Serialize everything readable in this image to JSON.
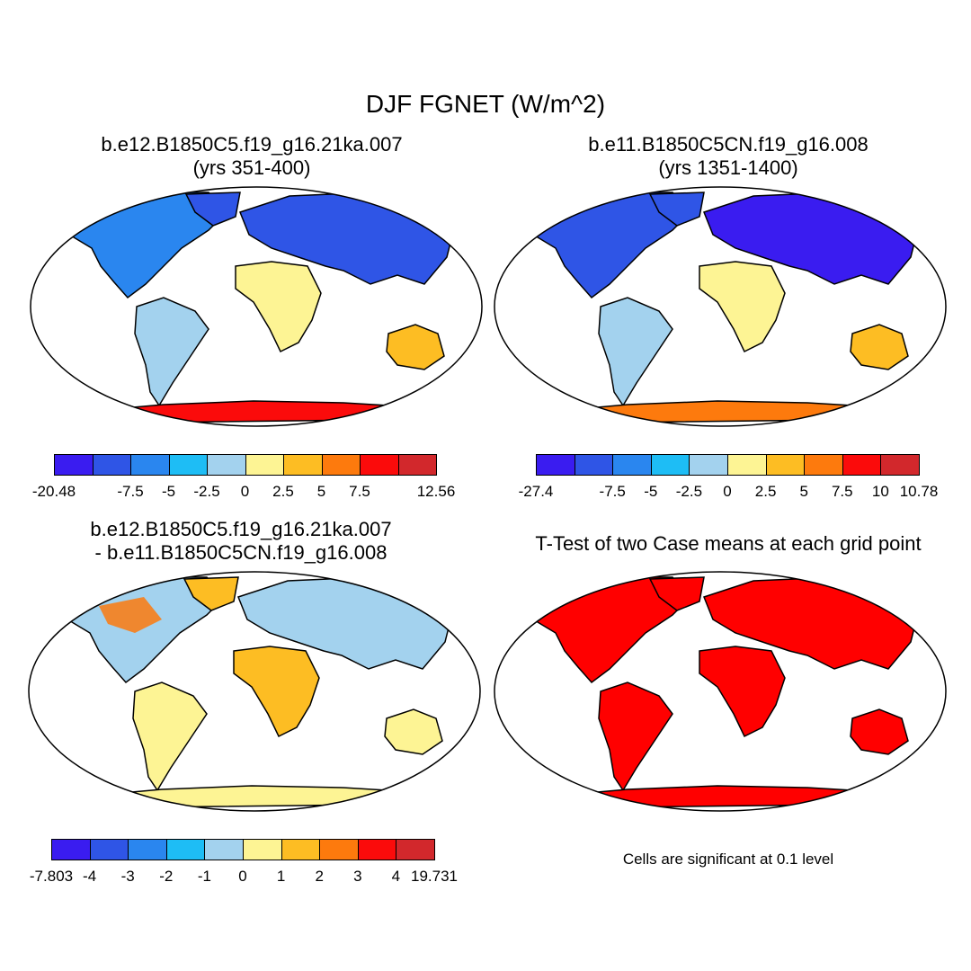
{
  "title": "DJF FGNET (W/m^2)",
  "palette": [
    "#3a1cf0",
    "#2f55e6",
    "#2a86ef",
    "#1ebdf5",
    "#a3d2ee",
    "#fdf494",
    "#fdbd23",
    "#fd7a0d",
    "#fb0b0b",
    "#d2282c"
  ],
  "panels": {
    "top_left": {
      "title_line1": "b.e12.B1850C5.f19_g16.21ka.007",
      "title_line2": "(yrs 351-400)",
      "colorbar_labels": [
        "-20.48",
        "-7.5",
        "-5",
        "-2.5",
        "0",
        "2.5",
        "5",
        "7.5",
        "",
        "12.56"
      ]
    },
    "top_right": {
      "title_line1": "b.e11.B1850C5CN.f19_g16.008",
      "title_line2": "(yrs 1351-1400)",
      "colorbar_labels": [
        "-27.4",
        "-7.5",
        "-5",
        "-2.5",
        "0",
        "2.5",
        "5",
        "7.5",
        "10",
        "10.78"
      ]
    },
    "bottom_left": {
      "title_line1": "b.e12.B1850C5.f19_g16.21ka.007",
      "title_line2": "- b.e11.B1850C5CN.f19_g16.008",
      "colorbar_labels": [
        "-7.803",
        "-4",
        "-3",
        "-2",
        "-1",
        "0",
        "1",
        "2",
        "3",
        "4",
        "19.731"
      ]
    },
    "bottom_right": {
      "title": "T-Test of two Case means at each grid point",
      "note": "Cells are significant at 0.1 level",
      "fill_color": "#ff0000"
    }
  }
}
